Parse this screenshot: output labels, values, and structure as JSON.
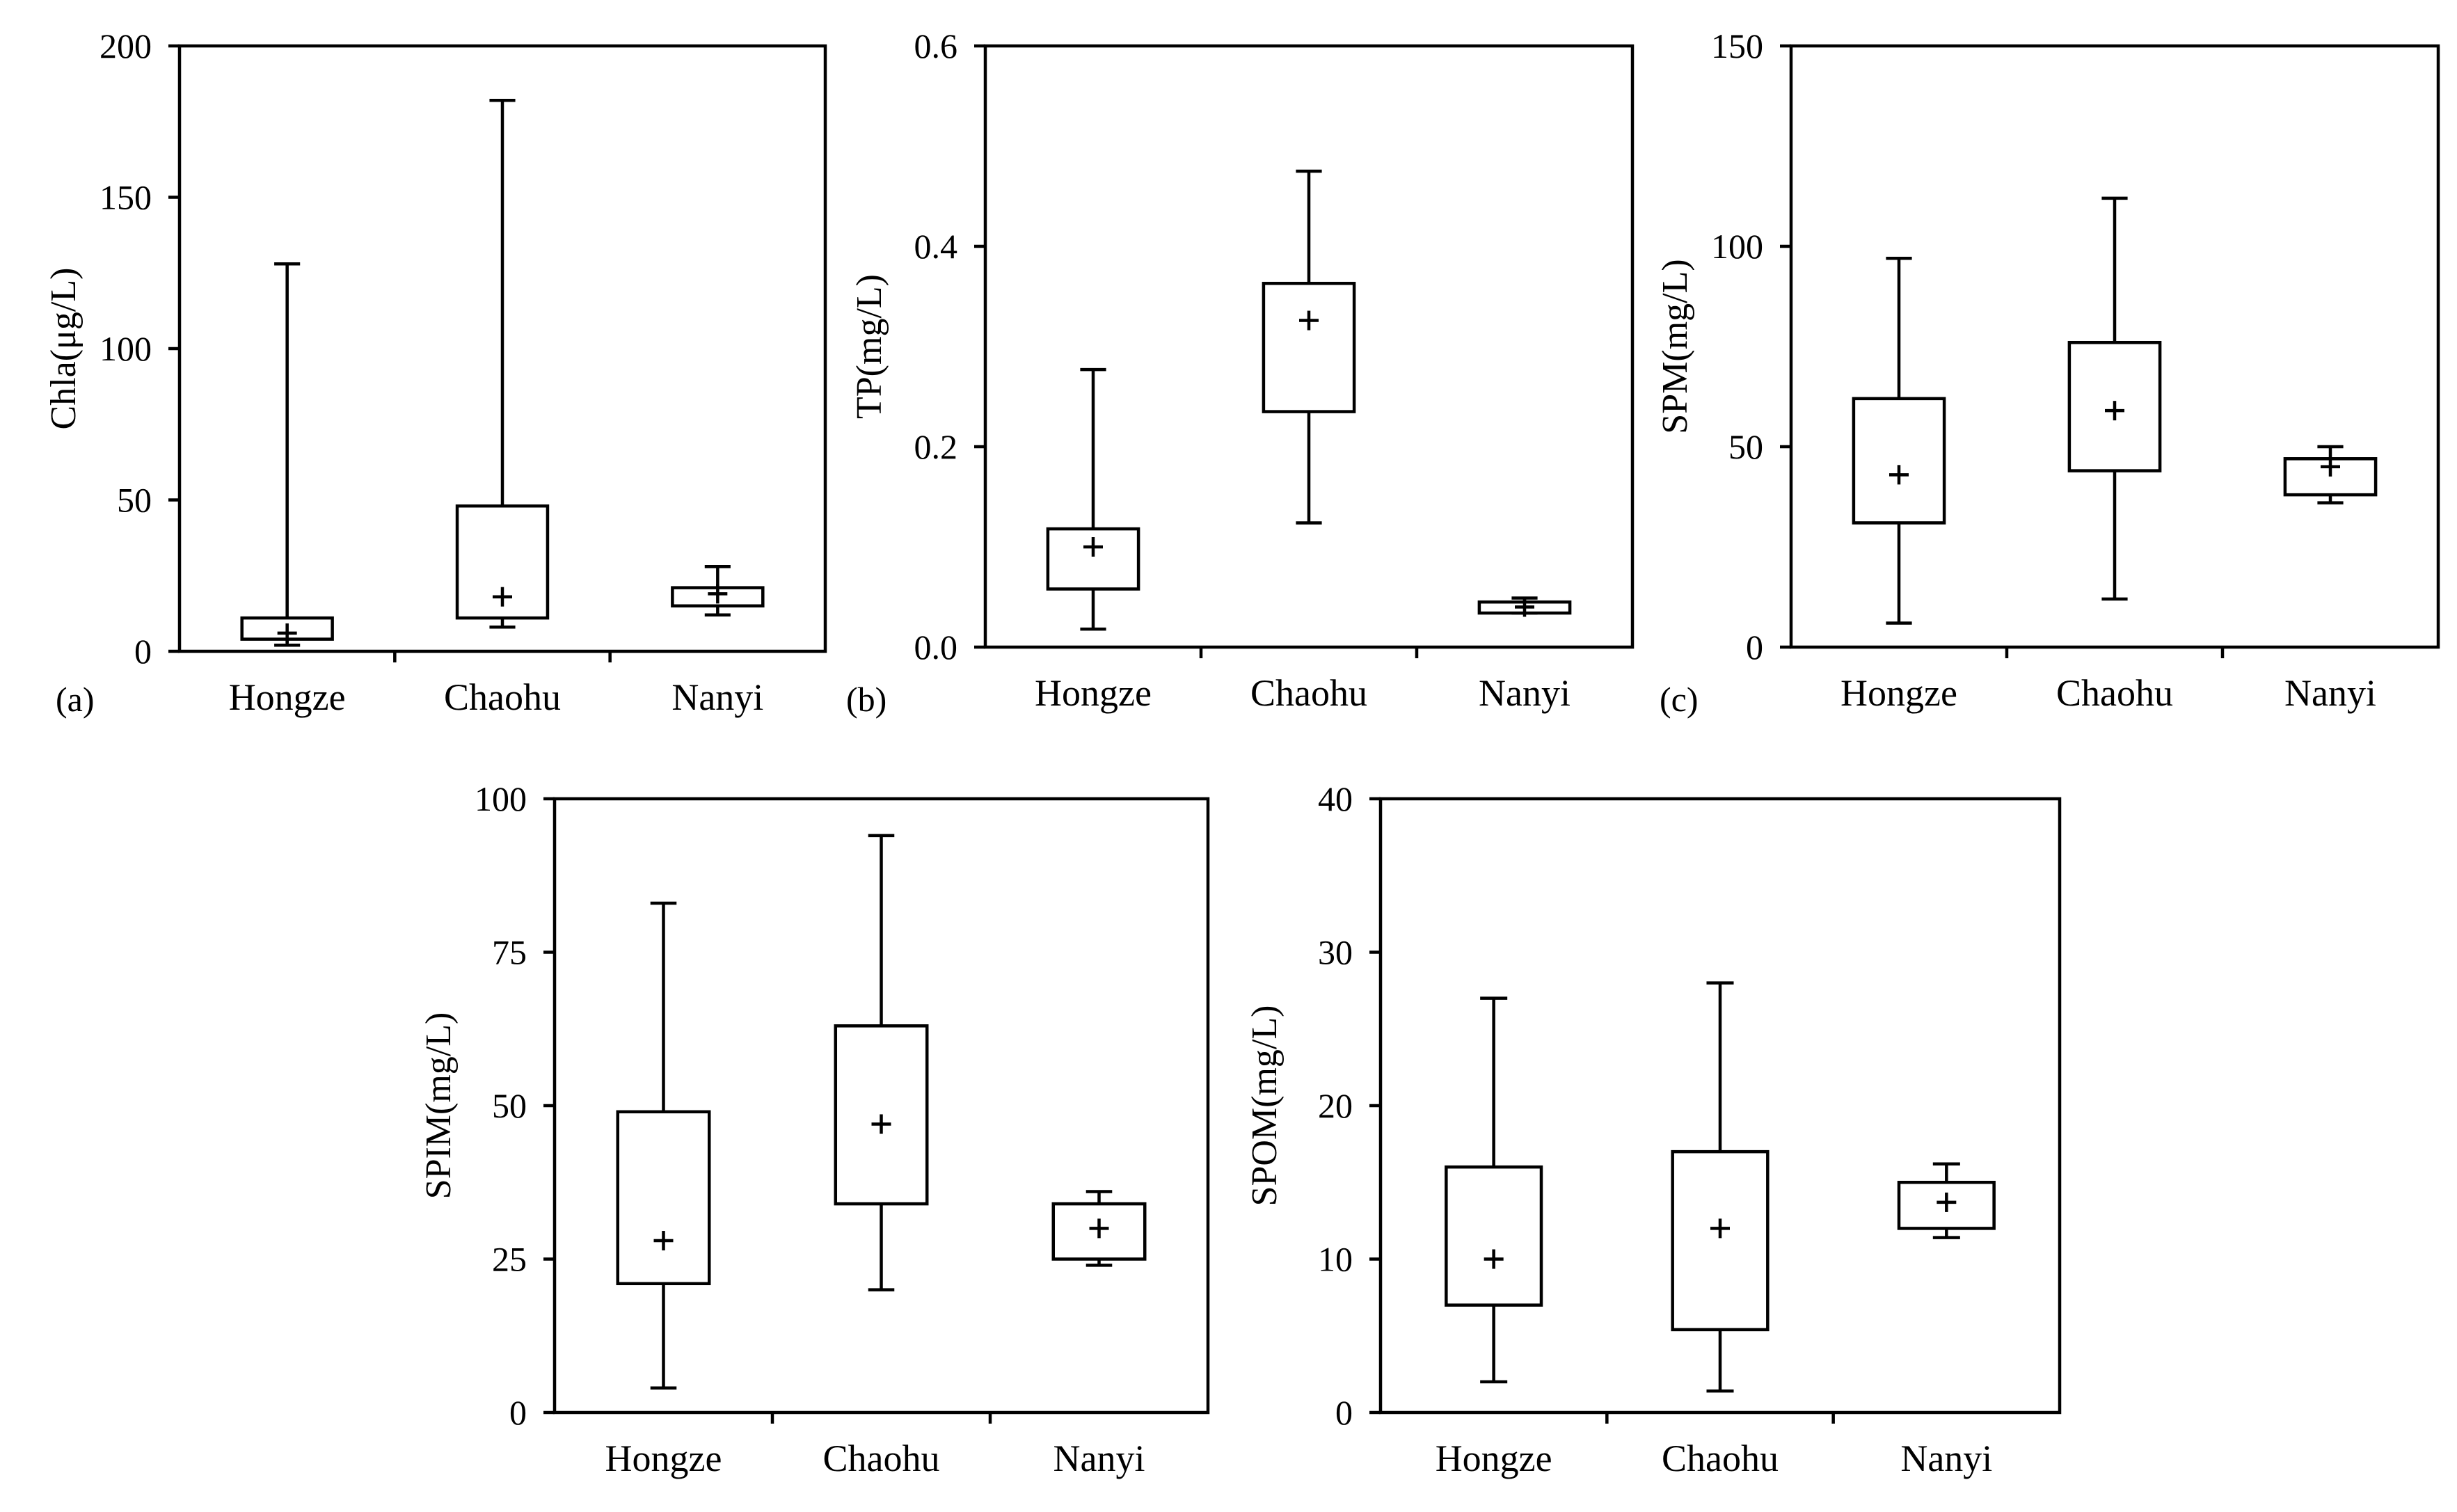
{
  "chart_data": [
    {
      "type": "box",
      "panel_label": "(a)",
      "ylabel": "Chla(μg/L)",
      "ylim": [
        0,
        200
      ],
      "yticks": [
        "0",
        "50",
        "100",
        "150",
        "200"
      ],
      "categories": [
        "Hongze",
        "Chaohu",
        "Nanyi"
      ],
      "boxes": [
        {
          "min": 2,
          "q1": 4,
          "q3": 11,
          "max": 128,
          "mean": 6
        },
        {
          "min": 8,
          "q1": 11,
          "q3": 48,
          "max": 182,
          "mean": 18
        },
        {
          "min": 12,
          "q1": 15,
          "q3": 21,
          "max": 28,
          "mean": 19
        }
      ]
    },
    {
      "type": "box",
      "panel_label": "(b)",
      "ylabel": "TP(mg/L)",
      "ylim": [
        0,
        0.6
      ],
      "yticks": [
        "0.0",
        "0.2",
        "0.4",
        "0.6"
      ],
      "categories": [
        "Hongze",
        "Chaohu",
        "Nanyi"
      ],
      "boxes": [
        {
          "min": 0.018,
          "q1": 0.058,
          "q3": 0.118,
          "max": 0.277,
          "mean": 0.1
        },
        {
          "min": 0.124,
          "q1": 0.235,
          "q3": 0.363,
          "max": 0.475,
          "mean": 0.326
        },
        {
          "min": 0.034,
          "q1": 0.034,
          "q3": 0.045,
          "max": 0.049,
          "mean": 0.04
        }
      ]
    },
    {
      "type": "box",
      "panel_label": "(c)",
      "ylabel": "SPM(mg/L)",
      "ylim": [
        0,
        150
      ],
      "yticks": [
        "0",
        "50",
        "100",
        "150"
      ],
      "categories": [
        "Hongze",
        "Chaohu",
        "Nanyi"
      ],
      "boxes": [
        {
          "min": 6,
          "q1": 31,
          "q3": 62,
          "max": 97,
          "mean": 43
        },
        {
          "min": 12,
          "q1": 44,
          "q3": 76,
          "max": 112,
          "mean": 59
        },
        {
          "min": 36,
          "q1": 38,
          "q3": 47,
          "max": 50,
          "mean": 45
        }
      ]
    },
    {
      "type": "box",
      "panel_label": "",
      "ylabel": "SPIM(mg/L)",
      "ylim": [
        0,
        100
      ],
      "yticks": [
        "0",
        "25",
        "50",
        "75",
        "100"
      ],
      "categories": [
        "Hongze",
        "Chaohu",
        "Nanyi"
      ],
      "boxes": [
        {
          "min": 4,
          "q1": 21,
          "q3": 49,
          "max": 83,
          "mean": 28
        },
        {
          "min": 20,
          "q1": 34,
          "q3": 63,
          "max": 94,
          "mean": 47
        },
        {
          "min": 24,
          "q1": 25,
          "q3": 34,
          "max": 36,
          "mean": 30
        }
      ]
    },
    {
      "type": "box",
      "panel_label": "",
      "ylabel": "SPOM(mg/L)",
      "ylim": [
        0,
        40
      ],
      "yticks": [
        "0",
        "10",
        "20",
        "30",
        "40"
      ],
      "categories": [
        "Hongze",
        "Chaohu",
        "Nanyi"
      ],
      "boxes": [
        {
          "min": 2,
          "q1": 7,
          "q3": 16,
          "max": 27,
          "mean": 10
        },
        {
          "min": 1.4,
          "q1": 5.4,
          "q3": 17,
          "max": 28,
          "mean": 12
        },
        {
          "min": 11.4,
          "q1": 12,
          "q3": 15,
          "max": 16.2,
          "mean": 13.7
        }
      ]
    }
  ]
}
